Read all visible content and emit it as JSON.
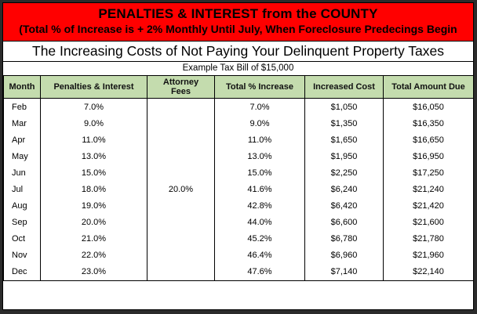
{
  "banner": {
    "title": "PENALTIES & INTEREST from the COUNTY",
    "subtitle": "(Total % of Increase is + 2% Monthly Until July, When Foreclosure Predecings Begin"
  },
  "heading": "The Increasing Costs of Not Paying Your Delinquent Property Taxes",
  "example": "Example Tax Bill of $15,000",
  "table": {
    "headers": [
      "Month",
      "Penalties & Interest",
      "Attorney Fees",
      "Total % Increase",
      "Increased Cost",
      "Total Amount Due"
    ],
    "rows": [
      [
        "Feb",
        "7.0%",
        "",
        "7.0%",
        "$1,050",
        "$16,050"
      ],
      [
        "Mar",
        "9.0%",
        "",
        "9.0%",
        "$1,350",
        "$16,350"
      ],
      [
        "Apr",
        "11.0%",
        "",
        "11.0%",
        "$1,650",
        "$16,650"
      ],
      [
        "May",
        "13.0%",
        "",
        "13.0%",
        "$1,950",
        "$16,950"
      ],
      [
        "Jun",
        "15.0%",
        "",
        "15.0%",
        "$2,250",
        "$17,250"
      ],
      [
        "Jul",
        "18.0%",
        "20.0%",
        "41.6%",
        "$6,240",
        "$21,240"
      ],
      [
        "Aug",
        "19.0%",
        "",
        "42.8%",
        "$6,420",
        "$21,420"
      ],
      [
        "Sep",
        "20.0%",
        "",
        "44.0%",
        "$6,600",
        "$21,600"
      ],
      [
        "Oct",
        "21.0%",
        "",
        "45.2%",
        "$6,780",
        "$21,780"
      ],
      [
        "Nov",
        "22.0%",
        "",
        "46.4%",
        "$6,960",
        "$21,960"
      ],
      [
        "Dec",
        "23.0%",
        "",
        "47.6%",
        "$7,140",
        "$22,140"
      ]
    ]
  }
}
